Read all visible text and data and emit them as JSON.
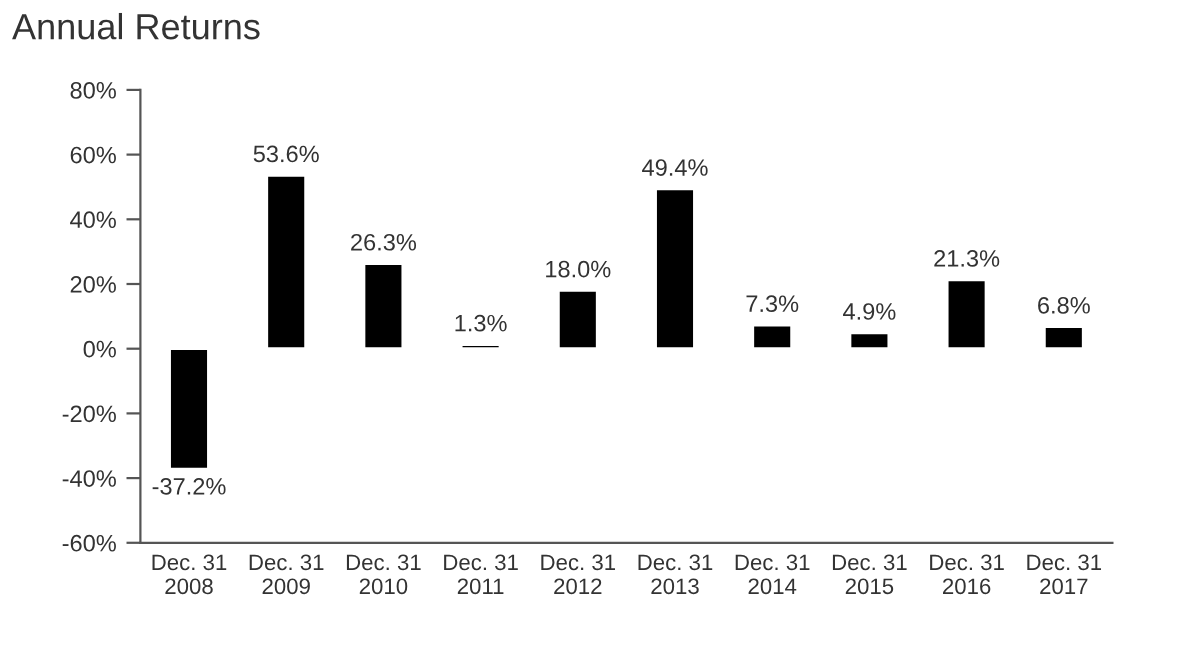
{
  "chart_data": {
    "type": "bar",
    "title": "Annual Returns",
    "categories": [
      "Dec. 31\n2008",
      "Dec. 31\n2009",
      "Dec. 31\n2010",
      "Dec. 31\n2011",
      "Dec. 31\n2012",
      "Dec. 31\n2013",
      "Dec. 31\n2014",
      "Dec. 31\n2015",
      "Dec. 31\n2016",
      "Dec. 31\n2017"
    ],
    "values": [
      -37.2,
      53.6,
      26.3,
      1.3,
      18.0,
      49.4,
      7.3,
      4.9,
      21.3,
      6.8
    ],
    "value_labels": [
      "-37.2%",
      "53.6%",
      "26.3%",
      "1.3%",
      "18.0%",
      "49.4%",
      "7.3%",
      "4.9%",
      "21.3%",
      "6.8%"
    ],
    "color": "#000000",
    "ylim": [
      -60,
      80
    ],
    "yticks": [
      {
        "value": -60,
        "label": "-60%"
      },
      {
        "value": -40,
        "label": "-40%"
      },
      {
        "value": -20,
        "label": "-20%"
      },
      {
        "value": 0,
        "label": "0%"
      },
      {
        "value": 20,
        "label": "20%"
      },
      {
        "value": 40,
        "label": "40%"
      },
      {
        "value": 60,
        "label": "60%"
      },
      {
        "value": 80,
        "label": "80%"
      }
    ],
    "grid": false,
    "legend": false
  }
}
